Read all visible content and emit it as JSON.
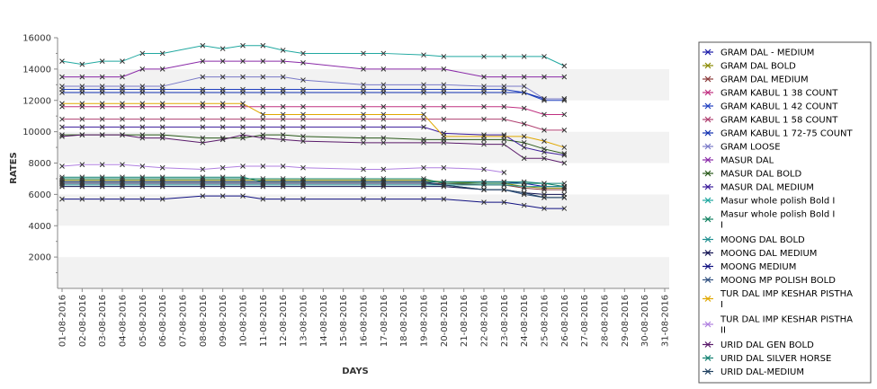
{
  "chart_data": {
    "type": "line",
    "title": "",
    "xlabel": "DAYS",
    "ylabel": "RATES",
    "ylim": [
      0,
      16000
    ],
    "yticks": [
      2000,
      4000,
      6000,
      8000,
      10000,
      12000,
      14000,
      16000
    ],
    "grid": "alternating horizontal bands",
    "legend_position": "right",
    "x": [
      "01-08-2016",
      "02-08-2016",
      "03-08-2016",
      "04-08-2016",
      "05-08-2016",
      "06-08-2016",
      "07-08-2016",
      "08-08-2016",
      "09-08-2016",
      "10-08-2016",
      "11-08-2016",
      "12-08-2016",
      "13-08-2016",
      "14-08-2016",
      "15-08-2016",
      "16-08-2016",
      "17-08-2016",
      "18-08-2016",
      "19-08-2016",
      "20-08-2016",
      "21-08-2016",
      "22-08-2016",
      "23-08-2016",
      "24-08-2016",
      "25-08-2016",
      "26-08-2016",
      "27-08-2016",
      "28-08-2016",
      "29-08-2016",
      "30-08-2016",
      "31-08-2016"
    ],
    "series": [
      {
        "name": "GRAM DAL - MEDIUM",
        "color": "#1a1aa8",
        "values": [
          6800,
          6800,
          6800,
          6800,
          6800,
          6800,
          null,
          6800,
          6800,
          6800,
          6800,
          6800,
          6800,
          null,
          null,
          6800,
          6800,
          null,
          6800,
          6800,
          null,
          6800,
          6800,
          6700,
          6500,
          6500,
          null,
          null,
          null,
          null,
          null
        ]
      },
      {
        "name": "GRAM DAL BOLD",
        "color": "#8a8a00",
        "values": [
          6900,
          6900,
          6900,
          6900,
          6900,
          6900,
          null,
          6900,
          6900,
          6900,
          6900,
          6900,
          6900,
          null,
          null,
          6900,
          6900,
          null,
          6900,
          6800,
          null,
          6700,
          6700,
          6500,
          6400,
          6400,
          null,
          null,
          null,
          null,
          null
        ]
      },
      {
        "name": "GRAM DAL MEDIUM",
        "color": "#8b3a3a",
        "values": [
          6700,
          6700,
          6700,
          6700,
          6700,
          6700,
          null,
          6700,
          6700,
          6700,
          6700,
          6700,
          6700,
          null,
          null,
          6700,
          6700,
          null,
          6700,
          6700,
          null,
          6600,
          6600,
          6400,
          6300,
          6300,
          null,
          null,
          null,
          null,
          null
        ]
      },
      {
        "name": "GRAM KABUL 1 38 COUNT",
        "color": "#c03080",
        "values": [
          11600,
          11600,
          11600,
          11600,
          11600,
          11600,
          null,
          11600,
          11600,
          11600,
          11600,
          11600,
          11600,
          null,
          null,
          11600,
          11600,
          null,
          11600,
          11600,
          null,
          11600,
          11600,
          11500,
          11100,
          11100,
          null,
          null,
          null,
          null,
          null
        ]
      },
      {
        "name": "GRAM KABUL 1 42 COUNT",
        "color": "#2040c0",
        "values": [
          12700,
          12700,
          12700,
          12700,
          12700,
          12700,
          null,
          12700,
          12700,
          12700,
          12700,
          12700,
          12700,
          null,
          null,
          12700,
          12700,
          null,
          12700,
          12700,
          null,
          12700,
          12700,
          12500,
          12000,
          12000,
          null,
          null,
          null,
          null,
          null
        ]
      },
      {
        "name": "GRAM KABUL 1 58 COUNT",
        "color": "#b04070",
        "values": [
          10800,
          10800,
          10800,
          10800,
          10800,
          10800,
          null,
          10800,
          10800,
          10800,
          10800,
          10800,
          10800,
          null,
          null,
          10800,
          10800,
          null,
          10800,
          10800,
          null,
          10800,
          10800,
          10500,
          10100,
          10100,
          null,
          null,
          null,
          null,
          null
        ]
      },
      {
        "name": "GRAM KABUL 1 72-75 COUNT",
        "color": "#1030b0",
        "values": [
          12500,
          12500,
          12500,
          12500,
          12500,
          12500,
          null,
          12500,
          12500,
          12500,
          12500,
          12500,
          12500,
          null,
          null,
          12500,
          12500,
          null,
          12500,
          12500,
          null,
          12500,
          12500,
          12500,
          12100,
          12100,
          null,
          null,
          null,
          null,
          null
        ]
      },
      {
        "name": "GRAM LOOSE",
        "color": "#7a7ac8",
        "values": [
          12900,
          12900,
          12900,
          12900,
          12900,
          12900,
          null,
          13500,
          13500,
          13500,
          13500,
          13500,
          13300,
          null,
          null,
          13000,
          13000,
          null,
          13000,
          13000,
          null,
          12900,
          12900,
          12900,
          12100,
          12100,
          null,
          null,
          null,
          null,
          null
        ]
      },
      {
        "name": "MASUR DAL",
        "color": "#8a2aa8",
        "values": [
          13500,
          13500,
          13500,
          13500,
          14000,
          14000,
          null,
          14500,
          14500,
          14500,
          14500,
          14500,
          14400,
          null,
          null,
          14000,
          14000,
          null,
          14000,
          14000,
          null,
          13500,
          13500,
          13500,
          13500,
          13500,
          null,
          null,
          null,
          null,
          null
        ]
      },
      {
        "name": "MASUR DAL BOLD",
        "color": "#2a5a1a",
        "values": [
          9800,
          9800,
          9800,
          9800,
          9800,
          9800,
          null,
          9600,
          9600,
          9600,
          9800,
          9800,
          9700,
          null,
          null,
          9600,
          9600,
          null,
          9500,
          9500,
          null,
          9500,
          9500,
          9300,
          8900,
          8600,
          null,
          null,
          null,
          null,
          null
        ]
      },
      {
        "name": "MASUR DAL MEDIUM",
        "color": "#3a1a9a",
        "values": [
          10300,
          10300,
          10300,
          10300,
          10300,
          10300,
          null,
          10300,
          10300,
          10300,
          10300,
          10300,
          10300,
          null,
          null,
          10300,
          10300,
          null,
          10300,
          9900,
          null,
          9800,
          9800,
          9000,
          8700,
          8500,
          null,
          null,
          null,
          null,
          null
        ]
      },
      {
        "name": "Masur whole polish Bold I",
        "color": "#20a8a0",
        "values": [
          14500,
          14300,
          14500,
          14500,
          15000,
          15000,
          null,
          15500,
          15300,
          15500,
          15500,
          15200,
          15000,
          null,
          null,
          15000,
          15000,
          null,
          14900,
          14800,
          null,
          14800,
          14800,
          14800,
          14800,
          14200,
          null,
          null,
          null,
          null,
          null
        ]
      },
      {
        "name": "Masur whole polish Bold I I",
        "color": "#108060",
        "values": [
          7000,
          7000,
          7000,
          7000,
          7000,
          7000,
          null,
          7000,
          7000,
          7000,
          7000,
          7000,
          7000,
          null,
          null,
          7000,
          7000,
          null,
          7000,
          6700,
          null,
          6700,
          6700,
          6700,
          6700,
          6500,
          null,
          null,
          null,
          null,
          null
        ]
      },
      {
        "name": "MOONG DAL BOLD",
        "color": "#209090",
        "values": [
          6600,
          6600,
          6600,
          6600,
          6600,
          6600,
          null,
          6600,
          6600,
          6600,
          6600,
          6600,
          6600,
          null,
          null,
          6600,
          6600,
          null,
          6600,
          6600,
          null,
          6600,
          6600,
          6500,
          6500,
          6500,
          null,
          null,
          null,
          null,
          null
        ]
      },
      {
        "name": "MOONG DAL MEDIUM",
        "color": "#101050",
        "values": [
          6500,
          6500,
          6500,
          6500,
          6500,
          6500,
          null,
          6500,
          6500,
          6500,
          6500,
          6500,
          6500,
          null,
          null,
          6500,
          6500,
          null,
          6500,
          6500,
          null,
          6300,
          6300,
          6100,
          6000,
          6000,
          null,
          null,
          null,
          null,
          null
        ]
      },
      {
        "name": "MOONG MEDIUM",
        "color": "#101080",
        "values": [
          5700,
          5700,
          5700,
          5700,
          5700,
          5700,
          null,
          5900,
          5900,
          5900,
          5700,
          5700,
          5700,
          null,
          null,
          5700,
          5700,
          null,
          5700,
          5700,
          null,
          5500,
          5500,
          5300,
          5100,
          5100,
          null,
          null,
          null,
          null,
          null
        ]
      },
      {
        "name": "MOONG MP POLISH BOLD",
        "color": "#305080",
        "values": [
          6700,
          6700,
          6700,
          6700,
          6700,
          6700,
          null,
          6700,
          6700,
          6700,
          6700,
          6700,
          6700,
          null,
          null,
          6700,
          6700,
          null,
          6700,
          6600,
          null,
          6300,
          6300,
          6000,
          5800,
          5800,
          null,
          null,
          null,
          null,
          null
        ]
      },
      {
        "name": "TUR DAL IMP KESHAR PISTHA I",
        "color": "#e0a800",
        "values": [
          11800,
          11800,
          11800,
          11800,
          11800,
          11800,
          null,
          11800,
          11800,
          11800,
          11100,
          11100,
          11100,
          null,
          null,
          11100,
          11100,
          null,
          11100,
          9700,
          null,
          9700,
          9700,
          9700,
          9400,
          9000,
          null,
          null,
          null,
          null,
          null
        ]
      },
      {
        "name": "TUR DAL IMP KESHAR PISTHA II",
        "color": "#b080e0",
        "values": [
          7800,
          7900,
          7900,
          7900,
          7800,
          7700,
          null,
          7600,
          7700,
          7800,
          7800,
          7800,
          7700,
          null,
          null,
          7600,
          7600,
          null,
          7700,
          7700,
          null,
          7600,
          7400,
          null,
          null,
          null,
          null,
          null,
          null,
          null,
          null
        ]
      },
      {
        "name": "URID DAL GEN BOLD",
        "color": "#5a1a6a",
        "values": [
          9700,
          9800,
          9800,
          9800,
          9600,
          9600,
          null,
          9300,
          9500,
          9800,
          9600,
          9500,
          9400,
          null,
          null,
          9300,
          9300,
          null,
          9300,
          9300,
          null,
          9200,
          9200,
          8300,
          8300,
          8000,
          null,
          null,
          null,
          null,
          null
        ]
      },
      {
        "name": "URID DAL SILVER HORSE",
        "color": "#108070",
        "values": [
          7100,
          7100,
          7100,
          7100,
          7100,
          7100,
          null,
          7100,
          7100,
          7100,
          6800,
          6800,
          6800,
          null,
          null,
          6800,
          6800,
          null,
          6800,
          6800,
          null,
          6800,
          6800,
          6800,
          6700,
          6700,
          null,
          null,
          null,
          null,
          null
        ]
      },
      {
        "name": "URID DAL-MEDIUM",
        "color": "#204060",
        "values": [
          6800,
          6800,
          6800,
          6800,
          6800,
          6800,
          null,
          6800,
          6800,
          6800,
          6800,
          6800,
          6800,
          null,
          null,
          6800,
          6800,
          null,
          6800,
          6600,
          null,
          6300,
          6300,
          6100,
          5800,
          5800,
          null,
          null,
          null,
          null,
          null
        ]
      }
    ]
  }
}
